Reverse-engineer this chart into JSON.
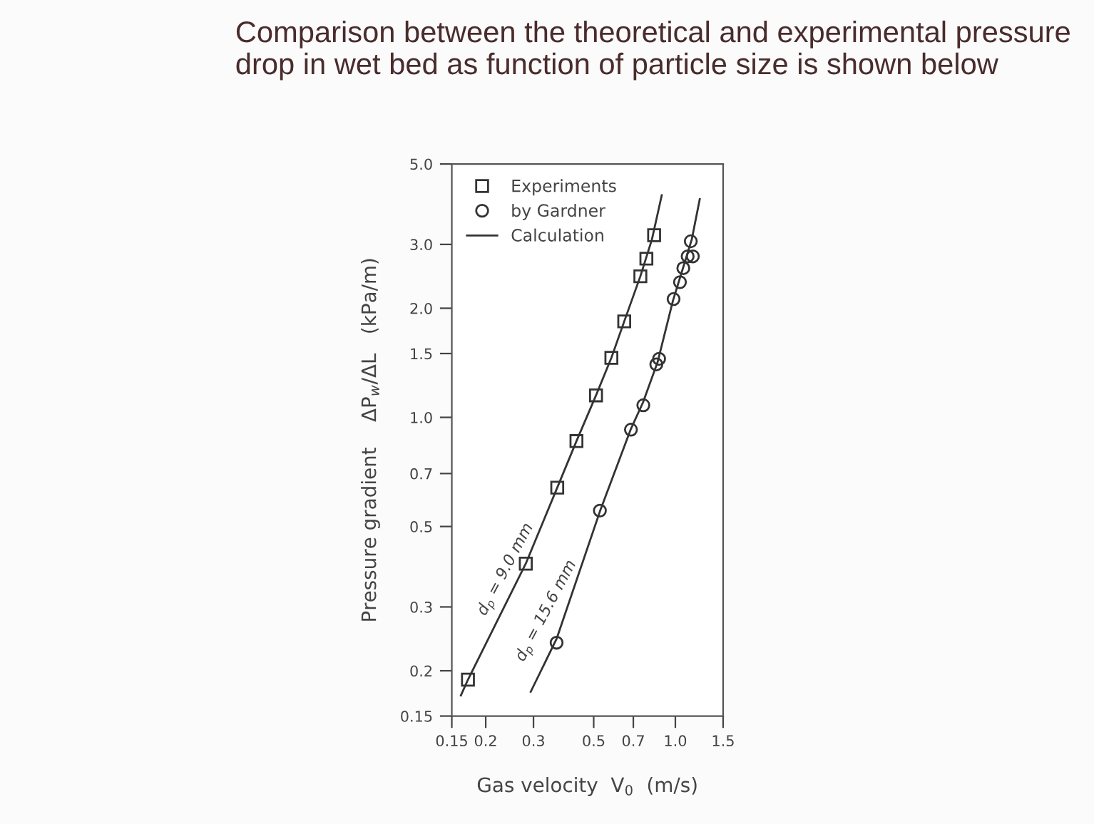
{
  "chart_data": {
    "type": "scatter",
    "title": "Comparison between the theoretical and experimental pressure drop in wet bed as function of particle size is shown below",
    "xlabel": "Gas velocity  V$_{0}$  (m/s)",
    "ylabel": "Pressure gradient    ΔP$_{w}$/ΔL   (kPa/m)",
    "log": "xy",
    "xlim": [
      0.15,
      1.5
    ],
    "ylim": [
      0.15,
      5.0
    ],
    "xticks": [
      0.15,
      0.2,
      0.3,
      0.5,
      0.7,
      {
        "value": 1.0,
        "label": "1.0"
      },
      1.5
    ],
    "yticks": [
      0.15,
      0.2,
      0.3,
      0.5,
      0.7,
      {
        "value": 1.0,
        "label": "1.0"
      },
      1.5,
      {
        "value": 2.0,
        "label": "2.0"
      },
      {
        "value": 3.0,
        "label": "3.0"
      },
      {
        "value": 5.0,
        "label": "5.0"
      }
    ],
    "grid": false,
    "legend": "top left",
    "series": [
      {
        "name": "Experiments",
        "marker": "square",
        "color": "#333333",
        "x": [
          0.172,
          0.281,
          0.367,
          0.432,
          0.51,
          0.581,
          0.648,
          0.743,
          0.782,
          0.835
        ],
        "values": [
          0.189,
          0.395,
          0.64,
          0.86,
          1.15,
          1.46,
          1.84,
          2.45,
          2.74,
          3.18
        ]
      },
      {
        "name": "by Gardner",
        "marker": "circle",
        "color": "#333333",
        "x": [
          0.365,
          0.527,
          0.686,
          0.762,
          0.851,
          0.871,
          0.985,
          1.04,
          1.07,
          1.11,
          1.16,
          1.14
        ],
        "values": [
          0.239,
          0.553,
          0.925,
          1.08,
          1.4,
          1.45,
          2.12,
          2.36,
          2.58,
          2.78,
          2.78,
          3.06
        ]
      },
      {
        "name": "Calculation",
        "type": "line",
        "marker": "none",
        "line_style": "solid",
        "color": "#333333",
        "x": [
          0.162,
          0.172,
          0.281,
          0.367,
          0.432,
          0.51,
          0.581,
          0.648,
          0.743,
          0.82,
          0.891
        ],
        "values": [
          0.171,
          0.189,
          0.395,
          0.64,
          0.86,
          1.15,
          1.46,
          1.84,
          2.45,
          3.1,
          4.1
        ]
      },
      {
        "type": "line",
        "marker": "none",
        "line_style": "solid",
        "color": "#333333",
        "x": [
          0.293,
          0.365,
          0.527,
          0.686,
          0.76,
          0.86,
          0.98,
          1.07,
          1.15,
          1.23
        ],
        "values": [
          0.175,
          0.245,
          0.55,
          0.93,
          1.1,
          1.42,
          2.1,
          2.6,
          3.1,
          4.0
        ]
      }
    ],
    "annotations": [
      "d$_{p}$ = 9.0 mm",
      "d$_{p}$ = 15.6 mm"
    ]
  }
}
